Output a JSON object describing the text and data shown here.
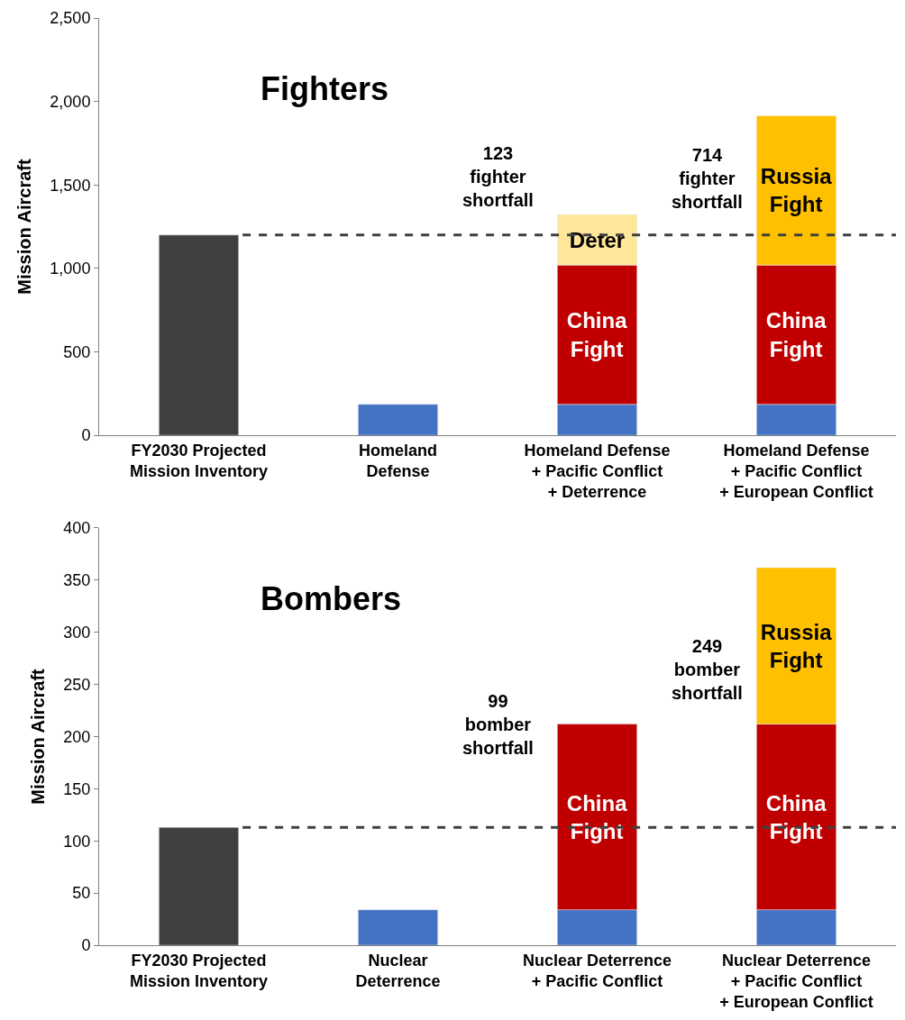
{
  "chart_data": [
    {
      "type": "bar",
      "stacked": true,
      "title": "Fighters",
      "ylabel": "Mission Aircraft",
      "categories": [
        "FY2030 Projected\nMission Inventory",
        "Homeland\nDefense",
        "Homeland Defense\n+ Pacific Conflict\n+ Deterrence",
        "Homeland Defense\n+ Pacific Conflict\n+ European Conflict"
      ],
      "series": [
        {
          "color": "#404040",
          "values": [
            1200,
            null,
            null,
            null
          ]
        },
        {
          "color": "#4472c4",
          "values": [
            null,
            185,
            185,
            185
          ]
        },
        {
          "name": "China\nFight",
          "color": "#c00000",
          "values": [
            null,
            null,
            835,
            835
          ]
        },
        {
          "name": "Deter",
          "color": "#ffe699",
          "values": [
            null,
            null,
            303,
            null
          ]
        },
        {
          "name": "Russia\nFight",
          "color": "#ffc000",
          "values": [
            null,
            null,
            null,
            894
          ]
        }
      ],
      "ylim": [
        0,
        2500
      ],
      "yticks": [
        0,
        500,
        {
          "value": 1000,
          "label": "1,000"
        },
        {
          "value": 1500,
          "label": "1,500"
        },
        {
          "value": 2000,
          "label": "2,000"
        },
        {
          "value": 2500,
          "label": "2,500"
        }
      ],
      "ref_lines": [
        {
          "axis": "y",
          "value": 1200,
          "color": "#404040",
          "line_style": "dashed"
        }
      ],
      "annotations": [
        "123\nfighter\nshortfall",
        "714\nfighter\nshortfall"
      ]
    },
    {
      "type": "bar",
      "stacked": true,
      "title": "Bombers",
      "ylabel": "Mission Aircraft",
      "categories": [
        "FY2030 Projected\nMission Inventory",
        "Nuclear\nDeterrence",
        "Nuclear Deterrence\n+ Pacific Conflict",
        "Nuclear Deterrence\n+ Pacific Conflict\n+ European Conflict"
      ],
      "series": [
        {
          "color": "#404040",
          "values": [
            113,
            null,
            null,
            null
          ]
        },
        {
          "color": "#4472c4",
          "values": [
            null,
            34,
            34,
            34
          ]
        },
        {
          "name": "China\nFight",
          "color": "#c00000",
          "values": [
            null,
            null,
            178,
            178
          ]
        },
        {
          "name": "Russia\nFight",
          "color": "#ffc000",
          "values": [
            null,
            null,
            null,
            150
          ]
        }
      ],
      "ylim": [
        0,
        400
      ],
      "yticks": [
        0,
        50,
        100,
        150,
        200,
        250,
        300,
        350,
        400
      ],
      "ref_lines": [
        {
          "axis": "y",
          "value": 113,
          "color": "#404040",
          "line_style": "dashed"
        }
      ],
      "annotations": [
        "99\nbomber\nshortfall",
        "249\nbomber\nshortfall"
      ]
    }
  ]
}
